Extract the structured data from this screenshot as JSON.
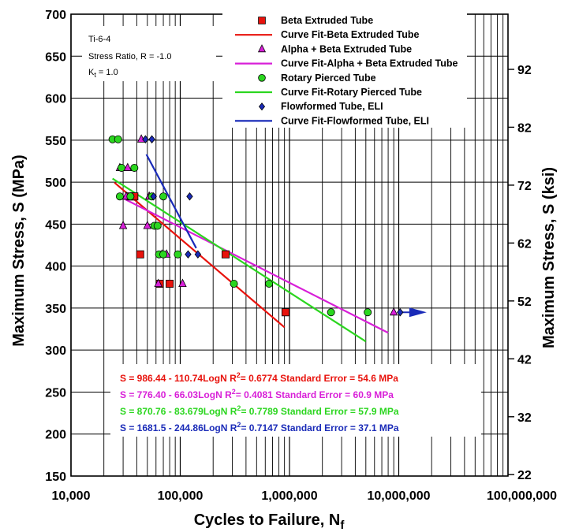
{
  "chart_data": {
    "type": "scatter",
    "title": "",
    "xlabel": "Cycles to Failure, N",
    "xlabel_sub": "f",
    "ylabel": "Maximum Stress, S (MPa)",
    "y2label": "Maximum Stress, S (ksi)",
    "xscale": "log",
    "xlim": [
      10000,
      100000000
    ],
    "ylim": [
      150,
      700
    ],
    "x_ticks": [
      {
        "value": 10000,
        "label": "10,000"
      },
      {
        "value": 100000,
        "label": "100,000"
      },
      {
        "value": 1000000,
        "label": "1,000,000"
      },
      {
        "value": 10000000,
        "label": "10,000,000"
      },
      {
        "value": 100000000,
        "label": "100,000,000"
      }
    ],
    "y_ticks": [
      150,
      200,
      250,
      300,
      350,
      400,
      450,
      500,
      550,
      600,
      650,
      700
    ],
    "y2_ticks": [
      {
        "value_mpa": 151.7,
        "label": "22"
      },
      {
        "value_mpa": 220.6,
        "label": "32"
      },
      {
        "value_mpa": 289.6,
        "label": "42"
      },
      {
        "value_mpa": 358.5,
        "label": "52"
      },
      {
        "value_mpa": 427.5,
        "label": "62"
      },
      {
        "value_mpa": 496.4,
        "label": "72"
      },
      {
        "value_mpa": 565.4,
        "label": "82"
      },
      {
        "value_mpa": 634.3,
        "label": "92"
      }
    ],
    "grid": true,
    "legend_position": "top-right",
    "notes": {
      "material": "Ti-6-4",
      "stress_ratio": "Stress Ratio, R = -1.0",
      "kt_main": "K",
      "kt_sub": "t",
      "kt_value": " = 1.0"
    },
    "series": [
      {
        "name": "Beta Extruded Tube",
        "marker": "square",
        "color": "#e8120c",
        "points": [
          [
            35000,
            483
          ],
          [
            38000,
            483
          ],
          [
            43000,
            414
          ],
          [
            65000,
            379
          ],
          [
            80000,
            379
          ],
          [
            260000,
            414
          ],
          [
            920000,
            345
          ]
        ]
      },
      {
        "name": "Alpha + Beta Extruded Tube",
        "marker": "triangle",
        "color": "#d81fd8",
        "points": [
          [
            28000,
            517
          ],
          [
            30000,
            448
          ],
          [
            32000,
            483
          ],
          [
            33000,
            517
          ],
          [
            44000,
            551
          ],
          [
            50000,
            448
          ],
          [
            52000,
            483
          ],
          [
            63000,
            379
          ],
          [
            68000,
            414
          ],
          [
            75000,
            414
          ],
          [
            105000,
            379
          ],
          [
            9000000,
            345
          ]
        ]
      },
      {
        "name": "Rotary Pierced Tube",
        "marker": "circle",
        "color": "#2bd61f",
        "points": [
          [
            24000,
            551
          ],
          [
            27000,
            551
          ],
          [
            28000,
            483
          ],
          [
            29000,
            517
          ],
          [
            35000,
            483
          ],
          [
            38000,
            517
          ],
          [
            55000,
            483
          ],
          [
            58000,
            448
          ],
          [
            62000,
            448
          ],
          [
            64000,
            414
          ],
          [
            70000,
            483
          ],
          [
            70000,
            414
          ],
          [
            95000,
            414
          ],
          [
            310000,
            379
          ],
          [
            650000,
            379
          ],
          [
            2400000,
            345
          ],
          [
            5200000,
            345
          ]
        ]
      },
      {
        "name": "Flowformed Tube, ELI",
        "marker": "diamond",
        "color": "#1a2bb8",
        "points": [
          [
            48000,
            551
          ],
          [
            55000,
            551
          ],
          [
            57000,
            483
          ],
          [
            118000,
            414
          ],
          [
            122000,
            483
          ],
          [
            145000,
            414
          ],
          [
            10300000,
            345
          ]
        ]
      }
    ],
    "fits": [
      {
        "name": "Curve Fit-Beta Extruded Tube",
        "color": "#e8120c",
        "x_range": [
          25000,
          900000
        ],
        "equation": "S = 986.44 - 110.74LogN",
        "r2_main": "R",
        "r2_sup": "2",
        "r2_value": "= 0.6774",
        "std_error": "Standard Error = 54.6 MPa"
      },
      {
        "name": "Curve Fit-Alpha + Beta Extruded Tube",
        "color": "#d81fd8",
        "x_range": [
          28000,
          8000000
        ],
        "equation": "S = 776.40 - 66.03LogN",
        "r2_main": "R",
        "r2_sup": "2",
        "r2_value": "= 0.4081",
        "std_error": "Standard Error = 60.9 MPa"
      },
      {
        "name": "Curve Fit-Rotary Pierced Tube",
        "color": "#2bd61f",
        "x_range": [
          24000,
          5000000
        ],
        "equation": "S = 870.76 - 83.679LogN",
        "r2_main": "R",
        "r2_sup": "2",
        "r2_value": "= 0.7789",
        "std_error": "Standard Error = 57.9 MPa"
      },
      {
        "name": "Curve Fit-Flowformed Tube, ELI",
        "color": "#1a2bb8",
        "x_range": [
          49000,
          140000
        ],
        "equation": "S = 1681.5 - 244.86LogN",
        "r2_main": "R",
        "r2_sup": "2",
        "r2_value": "= 0.7147",
        "std_error": "Standard Error = 37.1 MPa"
      }
    ],
    "runout_arrow": {
      "color": "#1a2bb8",
      "from_x": 10300000,
      "to_x": 18000000,
      "y": 345
    }
  }
}
